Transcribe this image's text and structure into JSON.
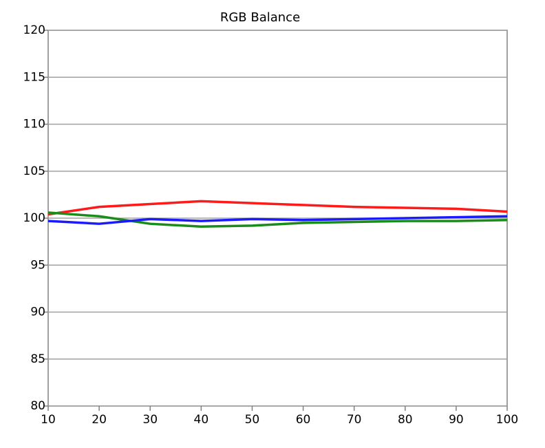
{
  "chart_data": {
    "type": "line",
    "title": "RGB Balance",
    "x": [
      10,
      20,
      30,
      40,
      50,
      60,
      70,
      80,
      90,
      100
    ],
    "series": [
      {
        "color": "#ff1a1a",
        "values": [
          100.4,
          101.2,
          101.5,
          101.8,
          101.6,
          101.4,
          101.2,
          101.1,
          101.0,
          100.7
        ]
      },
      {
        "color": "#1a8c1a",
        "values": [
          100.6,
          100.2,
          99.4,
          99.1,
          99.2,
          99.5,
          99.6,
          99.7,
          99.7,
          99.8
        ]
      },
      {
        "color": "#1a1aff",
        "values": [
          99.7,
          99.4,
          99.9,
          99.7,
          99.9,
          99.8,
          99.9,
          100.0,
          100.1,
          100.2
        ]
      }
    ],
    "xlim": [
      10,
      100
    ],
    "xticks": [
      10,
      20,
      30,
      40,
      50,
      60,
      70,
      80,
      90,
      100
    ],
    "ylim": [
      80,
      120
    ],
    "yticks": [
      80,
      85,
      90,
      95,
      100,
      105,
      110,
      115,
      120
    ],
    "grid": true
  }
}
